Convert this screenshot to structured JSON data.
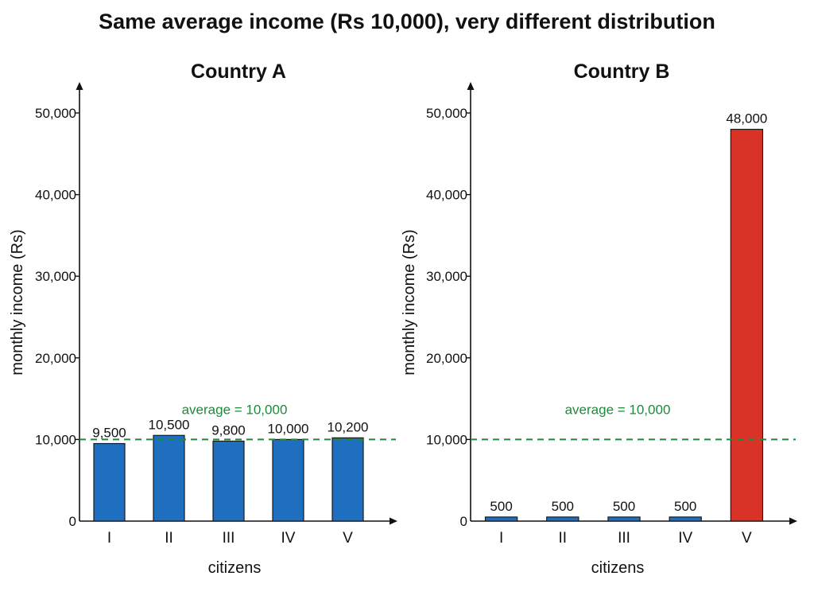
{
  "title": "Same average income (Rs 10,000), very different distribution",
  "colors": {
    "bar": "#1f6fc1",
    "highlight": "#d93327",
    "average": "#1e8a3a",
    "axis": "#111111"
  },
  "chart_data": [
    {
      "type": "bar",
      "title": "Country A",
      "xlabel": "citizens",
      "ylabel": "monthly income (Rs)",
      "categories": [
        "I",
        "II",
        "III",
        "IV",
        "V"
      ],
      "values": [
        9500,
        10500,
        9800,
        10000,
        10200
      ],
      "value_labels": [
        "9,500",
        "10,500",
        "9,800",
        "10,000",
        "10,200"
      ],
      "ylim": [
        0,
        50000
      ],
      "yticks": [
        0,
        10000,
        20000,
        30000,
        40000,
        50000
      ],
      "ytick_labels": [
        "0",
        "10,000",
        "20,000",
        "30,000",
        "40,000",
        "50,000"
      ],
      "average": 10000,
      "average_label": "average = 10,000",
      "highlight_index": -1
    },
    {
      "type": "bar",
      "title": "Country B",
      "xlabel": "citizens",
      "ylabel": "monthly income (Rs)",
      "categories": [
        "I",
        "II",
        "III",
        "IV",
        "V"
      ],
      "values": [
        500,
        500,
        500,
        500,
        48000
      ],
      "value_labels": [
        "500",
        "500",
        "500",
        "500",
        "48,000"
      ],
      "ylim": [
        0,
        50000
      ],
      "yticks": [
        0,
        10000,
        20000,
        30000,
        40000,
        50000
      ],
      "ytick_labels": [
        "0",
        "10,000",
        "20,000",
        "30,000",
        "40,000",
        "50,000"
      ],
      "average": 10000,
      "average_label": "average = 10,000",
      "highlight_index": 4
    }
  ]
}
